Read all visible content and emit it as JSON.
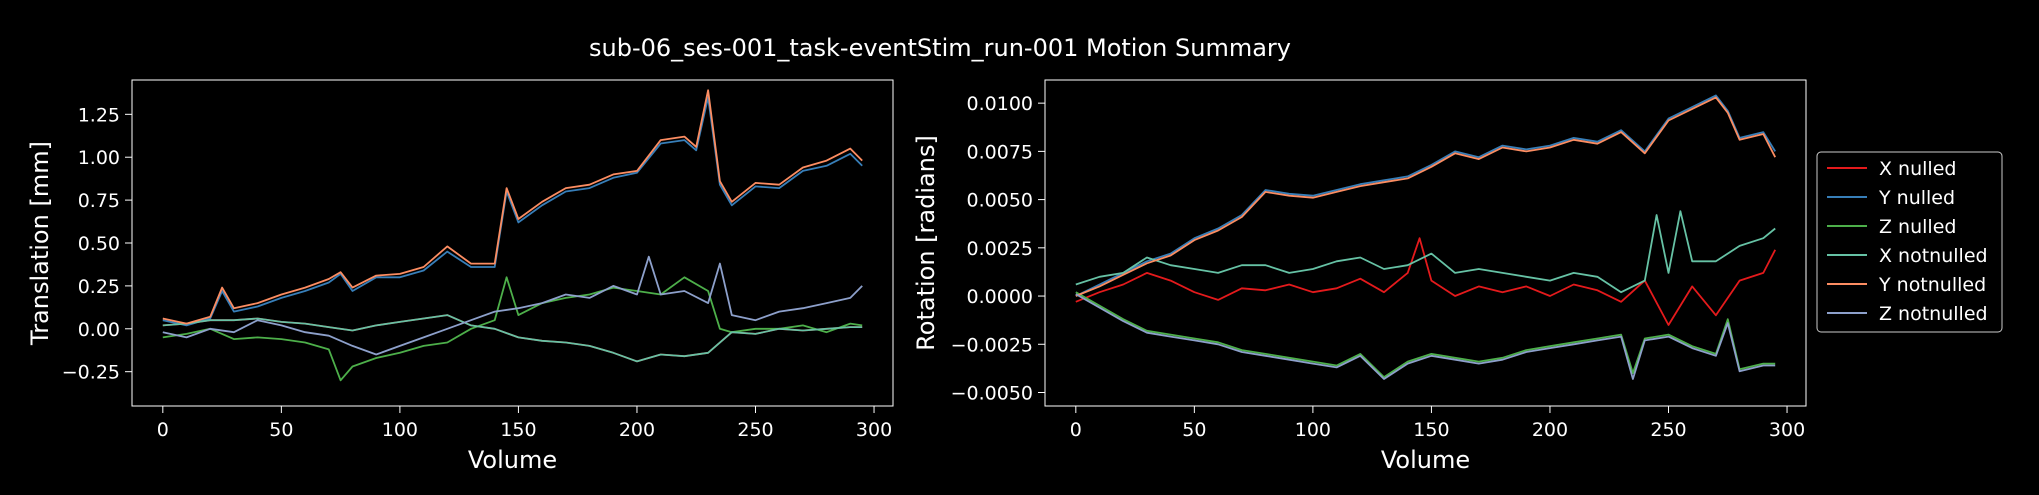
{
  "title": "sub-06_ses-001_task-eventStim_run-001 Motion Summary",
  "colors": {
    "background": "#000000",
    "axes": "#ffffff",
    "x_nulled": "#e41a1c",
    "y_nulled": "#377eb8",
    "z_nulled": "#4daf4a",
    "x_notnulled": "#66c2a5",
    "y_notnulled": "#fc8d62",
    "z_notnulled": "#8da0cb"
  },
  "legend": {
    "placement": "outside-right",
    "entries": [
      "X nulled",
      "Y nulled",
      "Z nulled",
      "X notnulled",
      "Y notnulled",
      "Z notnulled"
    ]
  },
  "chart_data": [
    {
      "type": "line",
      "xlabel": "Volume",
      "ylabel": "Translation [mm]",
      "xlim": [
        -13,
        308
      ],
      "ylim": [
        -0.45,
        1.45
      ],
      "xticks": [
        0,
        50,
        100,
        150,
        200,
        250,
        300
      ],
      "xtick_labels": [
        "0",
        "50",
        "100",
        "150",
        "200",
        "250",
        "300"
      ],
      "yticks": [
        -0.25,
        0,
        0.25,
        0.5,
        0.75,
        1.0,
        1.25
      ],
      "ytick_labels": [
        "−0.25",
        "0.00",
        "0.25",
        "0.50",
        "0.75",
        "1.00",
        "1.25"
      ],
      "series": [
        {
          "name": "X nulled",
          "color": "#e41a1c",
          "x": [
            0,
            10,
            20,
            30,
            40,
            50,
            60,
            70,
            80,
            90,
            100,
            110,
            120,
            130,
            140,
            150,
            160,
            170,
            180,
            190,
            200,
            210,
            220,
            230,
            240,
            250,
            260,
            270,
            280,
            290,
            295
          ],
          "y": [
            0.02,
            0.03,
            0.05,
            0.05,
            0.06,
            0.04,
            0.03,
            0.01,
            -0.01,
            0.02,
            0.04,
            0.06,
            0.08,
            0.02,
            0.0,
            -0.05,
            -0.07,
            -0.08,
            -0.1,
            -0.14,
            -0.19,
            -0.15,
            -0.16,
            -0.14,
            -0.02,
            -0.03,
            0.0,
            -0.01,
            0.0,
            0.01,
            0.01
          ]
        },
        {
          "name": "Y nulled",
          "color": "#377eb8",
          "x": [
            0,
            10,
            20,
            25,
            30,
            40,
            50,
            60,
            70,
            75,
            80,
            90,
            100,
            110,
            120,
            130,
            140,
            145,
            150,
            160,
            170,
            180,
            190,
            200,
            210,
            220,
            225,
            230,
            235,
            240,
            250,
            260,
            270,
            280,
            290,
            295
          ],
          "y": [
            0.05,
            0.02,
            0.06,
            0.22,
            0.1,
            0.13,
            0.18,
            0.22,
            0.27,
            0.32,
            0.22,
            0.3,
            0.3,
            0.34,
            0.45,
            0.36,
            0.36,
            0.8,
            0.62,
            0.72,
            0.8,
            0.82,
            0.88,
            0.91,
            1.08,
            1.1,
            1.04,
            1.35,
            0.84,
            0.72,
            0.83,
            0.82,
            0.92,
            0.95,
            1.02,
            0.95
          ]
        },
        {
          "name": "Z nulled",
          "color": "#4daf4a",
          "x": [
            0,
            10,
            20,
            30,
            40,
            50,
            60,
            70,
            75,
            80,
            90,
            100,
            110,
            120,
            130,
            140,
            145,
            150,
            160,
            170,
            180,
            190,
            200,
            210,
            220,
            230,
            235,
            240,
            250,
            260,
            270,
            280,
            290,
            295
          ],
          "y": [
            -0.05,
            -0.03,
            0.0,
            -0.06,
            -0.05,
            -0.06,
            -0.08,
            -0.12,
            -0.3,
            -0.22,
            -0.17,
            -0.14,
            -0.1,
            -0.08,
            0.0,
            0.05,
            0.3,
            0.08,
            0.15,
            0.18,
            0.2,
            0.24,
            0.22,
            0.2,
            0.3,
            0.22,
            0.0,
            -0.02,
            0.0,
            0.0,
            0.02,
            -0.02,
            0.03,
            0.02
          ]
        },
        {
          "name": "X notnulled",
          "color": "#66c2a5",
          "x": [
            0,
            10,
            20,
            30,
            40,
            50,
            60,
            70,
            80,
            90,
            100,
            110,
            120,
            130,
            140,
            150,
            160,
            170,
            180,
            190,
            200,
            210,
            220,
            230,
            240,
            250,
            260,
            270,
            280,
            290,
            295
          ],
          "y": [
            0.02,
            0.03,
            0.05,
            0.05,
            0.06,
            0.04,
            0.03,
            0.01,
            -0.01,
            0.02,
            0.04,
            0.06,
            0.08,
            0.02,
            0.0,
            -0.05,
            -0.07,
            -0.08,
            -0.1,
            -0.14,
            -0.19,
            -0.15,
            -0.16,
            -0.14,
            -0.02,
            -0.03,
            0.0,
            -0.01,
            0.0,
            0.01,
            0.01
          ]
        },
        {
          "name": "Y notnulled",
          "color": "#fc8d62",
          "x": [
            0,
            10,
            20,
            25,
            30,
            40,
            50,
            60,
            70,
            75,
            80,
            90,
            100,
            110,
            120,
            130,
            140,
            145,
            150,
            160,
            170,
            180,
            190,
            200,
            210,
            220,
            225,
            230,
            235,
            240,
            250,
            260,
            270,
            280,
            290,
            295
          ],
          "y": [
            0.06,
            0.03,
            0.07,
            0.24,
            0.12,
            0.15,
            0.2,
            0.24,
            0.29,
            0.33,
            0.24,
            0.31,
            0.32,
            0.36,
            0.48,
            0.38,
            0.38,
            0.82,
            0.64,
            0.74,
            0.82,
            0.84,
            0.9,
            0.92,
            1.1,
            1.12,
            1.06,
            1.39,
            0.86,
            0.74,
            0.85,
            0.84,
            0.94,
            0.98,
            1.05,
            0.98
          ]
        },
        {
          "name": "Z notnulled",
          "color": "#8da0cb",
          "x": [
            0,
            10,
            20,
            30,
            40,
            50,
            60,
            70,
            80,
            90,
            100,
            110,
            120,
            130,
            140,
            150,
            160,
            170,
            180,
            190,
            200,
            205,
            210,
            220,
            230,
            235,
            240,
            250,
            260,
            270,
            280,
            290,
            295
          ],
          "y": [
            -0.02,
            -0.05,
            0.0,
            -0.02,
            0.05,
            0.02,
            -0.02,
            -0.04,
            -0.1,
            -0.15,
            -0.1,
            -0.05,
            0.0,
            0.05,
            0.1,
            0.12,
            0.15,
            0.2,
            0.18,
            0.25,
            0.2,
            0.42,
            0.2,
            0.22,
            0.15,
            0.38,
            0.08,
            0.05,
            0.1,
            0.12,
            0.15,
            0.18,
            0.25
          ]
        }
      ]
    },
    {
      "type": "line",
      "xlabel": "Volume",
      "ylabel": "Rotation [radians]",
      "xlim": [
        -13,
        308
      ],
      "ylim": [
        -0.0057,
        0.0112
      ],
      "xticks": [
        0,
        50,
        100,
        150,
        200,
        250,
        300
      ],
      "xtick_labels": [
        "0",
        "50",
        "100",
        "150",
        "200",
        "250",
        "300"
      ],
      "yticks": [
        -0.005,
        -0.0025,
        0.0,
        0.0025,
        0.005,
        0.0075,
        0.01
      ],
      "ytick_labels": [
        "−0.0050",
        "−0.0025",
        "0.0000",
        "0.0025",
        "0.0050",
        "0.0075",
        "0.0100"
      ],
      "series": [
        {
          "name": "X nulled",
          "color": "#e41a1c",
          "x": [
            0,
            10,
            20,
            30,
            40,
            50,
            60,
            70,
            80,
            90,
            100,
            110,
            120,
            130,
            140,
            145,
            150,
            160,
            170,
            180,
            190,
            200,
            210,
            220,
            230,
            240,
            250,
            260,
            270,
            280,
            290,
            295
          ],
          "y": [
            -0.0003,
            0.0002,
            0.0006,
            0.0012,
            0.0008,
            0.0002,
            -0.0002,
            0.0004,
            0.0003,
            0.0006,
            0.0002,
            0.0004,
            0.0009,
            0.0002,
            0.0012,
            0.003,
            0.0008,
            0.0,
            0.0005,
            0.0002,
            0.0005,
            0.0,
            0.0006,
            0.0003,
            -0.0003,
            0.0008,
            -0.0015,
            0.0005,
            -0.001,
            0.0008,
            0.0012,
            0.0024
          ]
        },
        {
          "name": "Y nulled",
          "color": "#377eb8",
          "x": [
            0,
            10,
            20,
            30,
            40,
            50,
            60,
            70,
            80,
            90,
            100,
            110,
            120,
            130,
            140,
            150,
            160,
            170,
            180,
            190,
            200,
            210,
            220,
            230,
            240,
            250,
            260,
            270,
            275,
            280,
            290,
            295
          ],
          "y": [
            0.0,
            0.0006,
            0.0012,
            0.0018,
            0.0022,
            0.003,
            0.0035,
            0.0042,
            0.0055,
            0.0053,
            0.0052,
            0.0055,
            0.0058,
            0.006,
            0.0062,
            0.0068,
            0.0075,
            0.0072,
            0.0078,
            0.0076,
            0.0078,
            0.0082,
            0.008,
            0.0086,
            0.0075,
            0.0092,
            0.0098,
            0.0104,
            0.0096,
            0.0082,
            0.0085,
            0.0075
          ]
        },
        {
          "name": "Z nulled",
          "color": "#4daf4a",
          "x": [
            0,
            10,
            20,
            30,
            40,
            50,
            60,
            70,
            80,
            90,
            100,
            110,
            120,
            130,
            140,
            150,
            160,
            170,
            180,
            190,
            200,
            210,
            220,
            230,
            235,
            240,
            250,
            260,
            270,
            275,
            280,
            290,
            295
          ],
          "y": [
            0.0002,
            -0.0005,
            -0.0012,
            -0.0018,
            -0.002,
            -0.0022,
            -0.0024,
            -0.0028,
            -0.003,
            -0.0032,
            -0.0034,
            -0.0036,
            -0.003,
            -0.0042,
            -0.0034,
            -0.003,
            -0.0032,
            -0.0034,
            -0.0032,
            -0.0028,
            -0.0026,
            -0.0024,
            -0.0022,
            -0.002,
            -0.004,
            -0.0022,
            -0.002,
            -0.0026,
            -0.003,
            -0.0012,
            -0.0038,
            -0.0035,
            -0.0035
          ]
        },
        {
          "name": "X notnulled",
          "color": "#66c2a5",
          "x": [
            0,
            10,
            20,
            30,
            40,
            50,
            60,
            70,
            80,
            90,
            100,
            110,
            120,
            130,
            140,
            150,
            160,
            170,
            180,
            190,
            200,
            210,
            220,
            230,
            240,
            245,
            250,
            255,
            260,
            270,
            280,
            290,
            295
          ],
          "y": [
            0.0006,
            0.001,
            0.0012,
            0.002,
            0.0016,
            0.0014,
            0.0012,
            0.0016,
            0.0016,
            0.0012,
            0.0014,
            0.0018,
            0.002,
            0.0014,
            0.0016,
            0.0022,
            0.0012,
            0.0014,
            0.0012,
            0.001,
            0.0008,
            0.0012,
            0.001,
            0.0002,
            0.0008,
            0.0042,
            0.0012,
            0.0044,
            0.0018,
            0.0018,
            0.0026,
            0.003,
            0.0035
          ]
        },
        {
          "name": "Y notnulled",
          "color": "#fc8d62",
          "x": [
            0,
            10,
            20,
            30,
            40,
            50,
            60,
            70,
            80,
            90,
            100,
            110,
            120,
            130,
            140,
            150,
            160,
            170,
            180,
            190,
            200,
            210,
            220,
            230,
            240,
            250,
            260,
            270,
            275,
            280,
            290,
            295
          ],
          "y": [
            0.0,
            0.0005,
            0.0011,
            0.0017,
            0.0021,
            0.0029,
            0.0034,
            0.0041,
            0.0054,
            0.0052,
            0.0051,
            0.0054,
            0.0057,
            0.0059,
            0.0061,
            0.0067,
            0.0074,
            0.0071,
            0.0077,
            0.0075,
            0.0077,
            0.0081,
            0.0079,
            0.0085,
            0.0074,
            0.0091,
            0.0097,
            0.0103,
            0.0095,
            0.0081,
            0.0084,
            0.0072
          ]
        },
        {
          "name": "Z notnulled",
          "color": "#8da0cb",
          "x": [
            0,
            10,
            20,
            30,
            40,
            50,
            60,
            70,
            80,
            90,
            100,
            110,
            120,
            130,
            140,
            150,
            160,
            170,
            180,
            190,
            200,
            210,
            220,
            230,
            235,
            240,
            250,
            260,
            270,
            275,
            280,
            290,
            295
          ],
          "y": [
            0.0001,
            -0.0006,
            -0.0013,
            -0.0019,
            -0.0021,
            -0.0023,
            -0.0025,
            -0.0029,
            -0.0031,
            -0.0033,
            -0.0035,
            -0.0037,
            -0.0031,
            -0.0043,
            -0.0035,
            -0.0031,
            -0.0033,
            -0.0035,
            -0.0033,
            -0.0029,
            -0.0027,
            -0.0025,
            -0.0023,
            -0.0021,
            -0.0043,
            -0.0023,
            -0.0021,
            -0.0027,
            -0.0031,
            -0.0014,
            -0.0039,
            -0.0036,
            -0.0036
          ]
        }
      ]
    }
  ]
}
